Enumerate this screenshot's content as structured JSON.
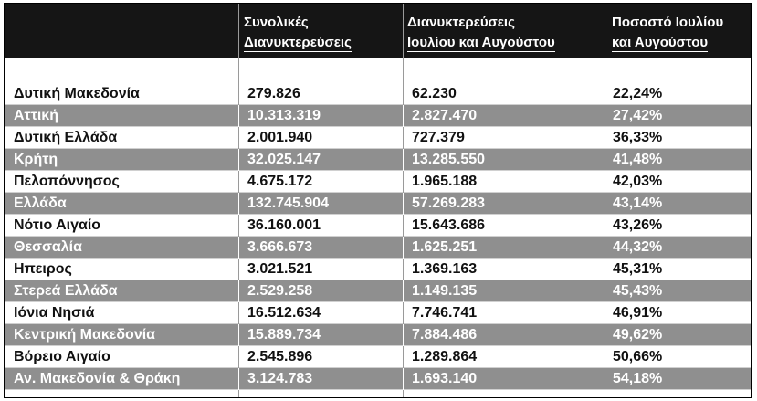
{
  "table": {
    "headers": [
      {
        "line1": "Συνολικές",
        "line2": "Διανυκτερεύσεις"
      },
      {
        "line1": "Διανυκτερεύσεις",
        "line2": "Ιουλίου και Αυγούστου"
      },
      {
        "line1": "Ποσοστό Ιουλίου",
        "line2": "και Αυγούστου"
      }
    ],
    "rows": [
      {
        "region": "Δυτική Μακεδονία",
        "total": "279.826",
        "july_august": "62.230",
        "percent": "22,24%"
      },
      {
        "region": "Αττική",
        "total": "10.313.319",
        "july_august": "2.827.470",
        "percent": "27,42%"
      },
      {
        "region": "Δυτική Ελλάδα",
        "total": "2.001.940",
        "july_august": "727.379",
        "percent": "36,33%"
      },
      {
        "region": "Κρήτη",
        "total": "32.025.147",
        "july_august": "13.285.550",
        "percent": "41,48%"
      },
      {
        "region": "Πελοπόννησος",
        "total": "4.675.172",
        "july_august": "1.965.188",
        "percent": "42,03%"
      },
      {
        "region": "Ελλάδα",
        "total": "132.745.904",
        "july_august": "57.269.283",
        "percent": "43,14%"
      },
      {
        "region": "Νότιο Αιγαίο",
        "total": "36.160.001",
        "july_august": "15.643.686",
        "percent": "43,26%"
      },
      {
        "region": "Θεσσαλία",
        "total": "3.666.673",
        "july_august": "1.625.251",
        "percent": "44,32%"
      },
      {
        "region": "Ηπειρος",
        "total": "3.021.521",
        "july_august": "1.369.163",
        "percent": "45,31%"
      },
      {
        "region": "Στερεά Ελλάδα",
        "total": "2.529.258",
        "july_august": "1.149.135",
        "percent": "45,43%"
      },
      {
        "region": "Ιόνια Νησιά",
        "total": "16.512.634",
        "july_august": "7.746.741",
        "percent": "46,91%"
      },
      {
        "region": "Κεντρική Μακεδονία",
        "total": "15.889.734",
        "july_august": "7.884.486",
        "percent": "49,62%"
      },
      {
        "region": "Βόρειο Αιγαίο",
        "total": "2.545.896",
        "july_august": "1.289.864",
        "percent": "50,66%"
      },
      {
        "region": "Αν. Μακεδονία & Θράκη",
        "total": "3.124.783",
        "july_august": "1.693.140",
        "percent": "54,18%"
      }
    ]
  }
}
